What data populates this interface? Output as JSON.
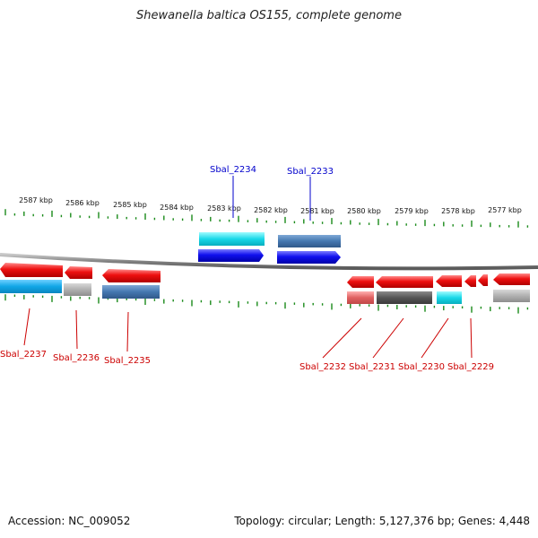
{
  "title": "Shewanella baltica OS155, complete genome",
  "footer": {
    "accession": "Accession: NC_009052",
    "stats": "Topology: circular; Length: 5,127,376 bp; Genes: 4,448"
  },
  "ruler": {
    "major_ticks": [
      "2587 kbp",
      "2586 kbp",
      "2585 kbp",
      "2584 kbp",
      "2583 kbp",
      "2582 kbp",
      "2581 kbp",
      "2580 kbp",
      "2579 kbp",
      "2578 kbp",
      "2577 kbp"
    ],
    "tick_color": "#1a8a1a"
  },
  "genes_top": [
    {
      "id": "Sbal_2234",
      "label": "Sbal_2234",
      "label_color": "#0000cc"
    },
    {
      "id": "Sbal_2233",
      "label": "Sbal_2233",
      "label_color": "#0000cc"
    }
  ],
  "genes_bottom": [
    {
      "id": "Sbal_2237",
      "label": "Sbal_2237"
    },
    {
      "id": "Sbal_2236",
      "label": "Sbal_2236"
    },
    {
      "id": "Sbal_2235",
      "label": "Sbal_2235"
    },
    {
      "id": "Sbal_2232",
      "label": "Sbal_2232"
    },
    {
      "id": "Sbal_2231",
      "label": "Sbal_2231"
    },
    {
      "id": "Sbal_2230",
      "label": "Sbal_2230"
    },
    {
      "id": "Sbal_2229",
      "label": "Sbal_2229"
    }
  ],
  "colors": {
    "forward_cds": "#1010ee",
    "reverse_cds": "#ee1010",
    "backbone": "#888888",
    "label_reverse": "#cc0000",
    "label_forward": "#0000cc"
  }
}
